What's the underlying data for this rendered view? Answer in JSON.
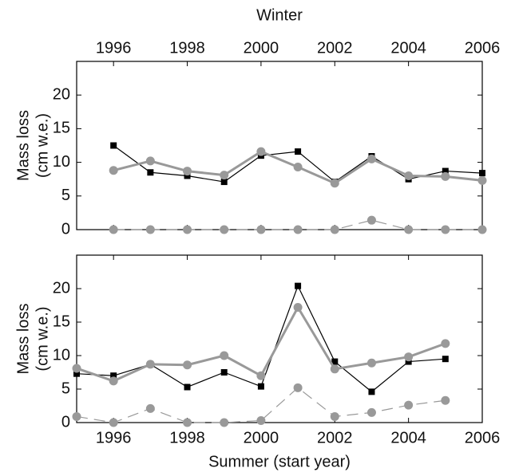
{
  "chart_data": [
    {
      "type": "line",
      "title": "Winter",
      "xaxis_position": "top",
      "ylabel": [
        "Mass loss",
        "(cm w.e.)"
      ],
      "x": [
        1996,
        1997,
        1998,
        1999,
        2000,
        2001,
        2002,
        2003,
        2004,
        2005,
        2006
      ],
      "xlim": [
        1995,
        2006
      ],
      "xticks": [
        1996,
        1998,
        2000,
        2002,
        2004,
        2006
      ],
      "ylim": [
        0,
        25
      ],
      "yticks": [
        0,
        5,
        10,
        15,
        20
      ],
      "series": [
        {
          "color": "#000000",
          "marker": "square",
          "line_width": 1.2,
          "line_style": "solid",
          "values": [
            12.5,
            8.5,
            8.0,
            7.1,
            11.0,
            11.6,
            7.1,
            10.9,
            7.5,
            8.7,
            8.4
          ]
        },
        {
          "color": "#999999",
          "marker": "circle",
          "line_width": 3,
          "line_style": "solid",
          "values": [
            8.8,
            10.2,
            8.7,
            8.1,
            11.6,
            9.3,
            6.9,
            10.5,
            8.0,
            7.9,
            7.3
          ]
        },
        {
          "color": "#999999",
          "marker": "circle",
          "line_width": 1.2,
          "line_style": "dashed",
          "values": [
            0,
            0,
            0,
            0,
            0,
            0,
            0,
            1.4,
            0,
            0,
            0
          ]
        }
      ]
    },
    {
      "type": "line",
      "xlabel": "Summer (start year)",
      "xaxis_position": "bottom",
      "ylabel": [
        "Mass loss",
        "(cm w.e.)"
      ],
      "x": [
        1995,
        1996,
        1997,
        1998,
        1999,
        2000,
        2001,
        2002,
        2003,
        2004,
        2005
      ],
      "xlim": [
        1995,
        2006
      ],
      "xticks": [
        1996,
        1998,
        2000,
        2002,
        2004,
        2006
      ],
      "ylim": [
        0,
        25
      ],
      "yticks": [
        0,
        5,
        10,
        15,
        20
      ],
      "series": [
        {
          "color": "#000000",
          "marker": "square",
          "line_width": 1.2,
          "line_style": "solid",
          "values": [
            7.3,
            7.0,
            8.7,
            5.3,
            7.5,
            5.4,
            20.4,
            9.1,
            4.6,
            9.1,
            9.5
          ]
        },
        {
          "color": "#999999",
          "marker": "circle",
          "line_width": 3,
          "line_style": "solid",
          "values": [
            8.1,
            6.2,
            8.7,
            8.6,
            10.0,
            7.0,
            17.2,
            8.0,
            8.9,
            9.8,
            11.8
          ]
        },
        {
          "color": "#999999",
          "marker": "circle",
          "line_width": 1.2,
          "line_style": "dashed",
          "values": [
            0.9,
            0,
            2.1,
            0,
            0,
            0.3,
            5.2,
            0.9,
            1.5,
            2.6,
            3.3
          ]
        }
      ]
    }
  ]
}
